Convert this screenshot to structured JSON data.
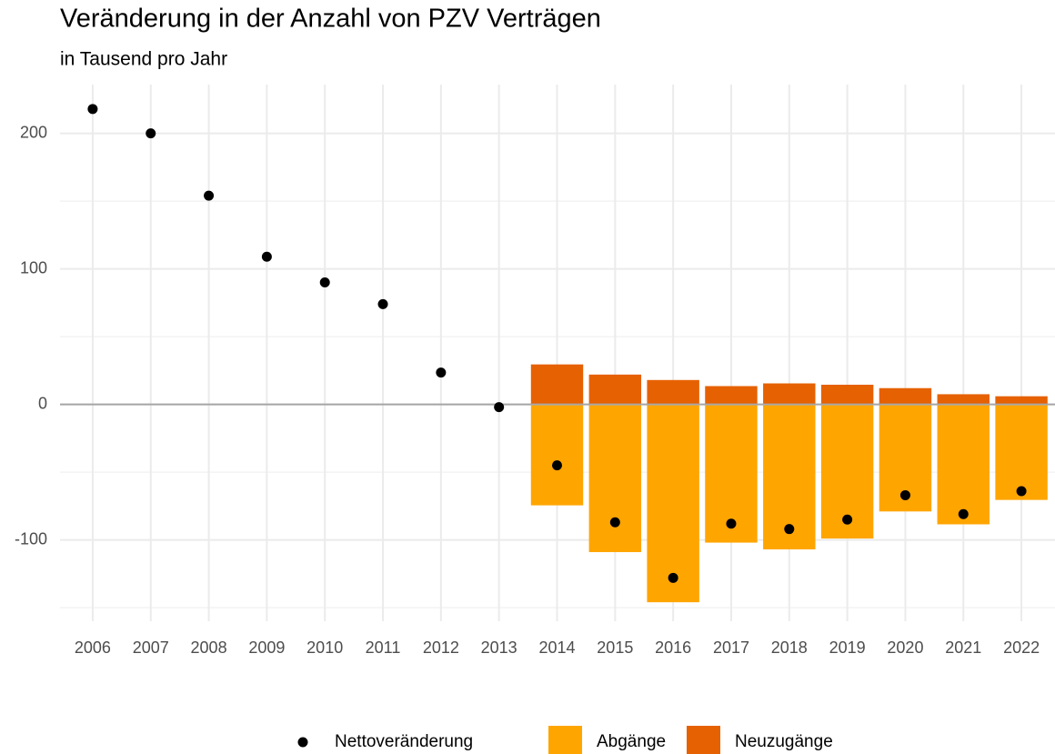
{
  "chart_data": {
    "type": "bar",
    "title": "Veränderung in der Anzahl von PZV Verträgen",
    "subtitle": "in Tausend pro Jahr",
    "categories": [
      "2006",
      "2007",
      "2008",
      "2009",
      "2010",
      "2011",
      "2012",
      "2013",
      "2014",
      "2015",
      "2016",
      "2017",
      "2018",
      "2019",
      "2020",
      "2021",
      "2022"
    ],
    "series": [
      {
        "name": "Nettoveränderung",
        "type": "point",
        "color": "#000000",
        "values": [
          218,
          200,
          154,
          109,
          90,
          74,
          23.5,
          -2,
          -45,
          -87,
          -128,
          -88,
          -92,
          -85,
          -67,
          -81,
          -64
        ]
      },
      {
        "name": "Abgänge",
        "type": "bar",
        "color": "#ffa500",
        "values": [
          null,
          null,
          null,
          null,
          null,
          null,
          null,
          null,
          -74.5,
          -109,
          -146,
          -102,
          -107,
          -99,
          -79,
          -88.5,
          -70.5
        ]
      },
      {
        "name": "Neuzugänge",
        "type": "bar",
        "color": "#e66101",
        "values": [
          null,
          null,
          null,
          null,
          null,
          null,
          null,
          null,
          29.5,
          22,
          18,
          13.5,
          15.5,
          14.5,
          12,
          7.5,
          6
        ]
      }
    ],
    "ylim": [
      -160,
      236
    ],
    "yticks": [
      -100,
      0,
      100,
      200
    ],
    "yminor_ticks": [
      -150,
      -50,
      50,
      150
    ],
    "grid": true,
    "legend": "bottom"
  }
}
